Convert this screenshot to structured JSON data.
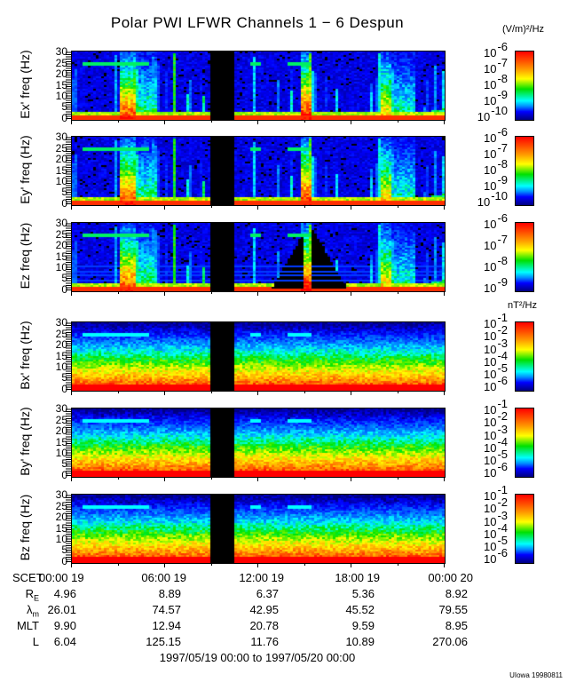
{
  "title": "Polar PWI LFWR Channels 1 − 6 Despun",
  "units": {
    "e_field": "(V/m)²/Hz",
    "b_field": "nT²/Hz"
  },
  "chart_data": {
    "type": "heatmap",
    "title": "Polar PWI LFWR Channels 1 − 6 Despun",
    "x_unit": "hours UT",
    "xlim": [
      0,
      24
    ],
    "data_gap_hours": [
      9.0,
      10.4
    ],
    "panels": [
      {
        "name": "Ex'",
        "ylabel": "Ex' freq (Hz)",
        "ylim": [
          0,
          30
        ],
        "yticks": [
          "0",
          "5",
          "10",
          "15",
          "20",
          "25",
          "30"
        ],
        "kind": "E",
        "cbar_exp": [
          "-6",
          "-7",
          "-8",
          "-9",
          "-10"
        ],
        "cbar_range": [
          -10.3,
          -6
        ],
        "cbar_unit": "(V/m)²/Hz"
      },
      {
        "name": "Ey'",
        "ylabel": "Ey' freq (Hz)",
        "ylim": [
          0,
          30
        ],
        "yticks": [
          "0",
          "5",
          "10",
          "15",
          "20",
          "25",
          "30"
        ],
        "kind": "E",
        "cbar_exp": [
          "-6",
          "-7",
          "-8",
          "-9",
          "-10"
        ],
        "cbar_range": [
          -10.3,
          -6
        ],
        "cbar_unit": "(V/m)²/Hz"
      },
      {
        "name": "Ez",
        "ylabel": "Ez freq (Hz)",
        "ylim": [
          0,
          30
        ],
        "yticks": [
          "0",
          "5",
          "10",
          "15",
          "20",
          "25",
          "30"
        ],
        "kind": "Ez",
        "cbar_exp": [
          "-6",
          "-7",
          "-8",
          "-9"
        ],
        "cbar_range": [
          -9.2,
          -6
        ],
        "cbar_unit": "(V/m)²/Hz"
      },
      {
        "name": "Bx'",
        "ylabel": "Bx' freq (Hz)",
        "ylim": [
          0,
          30
        ],
        "yticks": [
          "0",
          "5",
          "10",
          "15",
          "20",
          "25",
          "30"
        ],
        "kind": "B",
        "cbar_exp": [
          "-1",
          "-2",
          "-3",
          "-4",
          "-5",
          "-6"
        ],
        "cbar_range": [
          -6.4,
          -1
        ],
        "cbar_unit": "nT²/Hz"
      },
      {
        "name": "By'",
        "ylabel": "By' freq (Hz)",
        "ylim": [
          0,
          30
        ],
        "yticks": [
          "0",
          "5",
          "10",
          "15",
          "20",
          "25",
          "30"
        ],
        "kind": "B",
        "cbar_exp": [
          "-1",
          "-2",
          "-3",
          "-4",
          "-5",
          "-6"
        ],
        "cbar_range": [
          -6.4,
          -1
        ],
        "cbar_unit": "nT²/Hz"
      },
      {
        "name": "Bz",
        "ylabel": "Bz freq (Hz)",
        "ylim": [
          0,
          30
        ],
        "yticks": [
          "0",
          "5",
          "10",
          "15",
          "20",
          "25",
          "30"
        ],
        "kind": "B",
        "cbar_exp": [
          "-1",
          "-2",
          "-3",
          "-4",
          "-5",
          "-6"
        ],
        "cbar_range": [
          -6.4,
          -1
        ],
        "cbar_unit": "nT²/Hz"
      }
    ],
    "tone_25hz_hours": [
      [
        0.7,
        4.9
      ],
      [
        11.4,
        12.2
      ],
      [
        13.9,
        15.5
      ]
    ],
    "e_bursts_hours": [
      [
        3.1,
        4.1,
        0.95
      ],
      [
        4.1,
        5.5,
        0.55
      ],
      [
        6.5,
        6.7,
        0.6
      ],
      [
        14.8,
        15.5,
        1.0
      ],
      [
        19.9,
        20.6,
        0.8
      ],
      [
        20.6,
        22.2,
        0.5
      ]
    ],
    "colorbar_base": "10"
  },
  "ephemeris": {
    "scet_label": "SCET",
    "times": [
      "00:00 19",
      "06:00 19",
      "12:00 19",
      "18:00 19",
      "00:00 20"
    ],
    "rows": [
      {
        "label": "R",
        "sub": "E",
        "values": [
          "4.96",
          "8.89",
          "6.37",
          "5.36",
          "8.92"
        ]
      },
      {
        "label": "λ",
        "sub": "m",
        "values": [
          "26.01",
          "74.57",
          "42.95",
          "45.52",
          "79.55"
        ]
      },
      {
        "label": "MLT",
        "sub": "",
        "values": [
          "9.90",
          "12.94",
          "20.78",
          "9.59",
          "8.95"
        ]
      },
      {
        "label": "L",
        "sub": "",
        "values": [
          "6.04",
          "125.15",
          "11.76",
          "10.89",
          "270.06"
        ]
      }
    ]
  },
  "date_range": "1997/05/19 00:00 to 1997/05/20 00:00",
  "footer": "UIowa 19980811"
}
